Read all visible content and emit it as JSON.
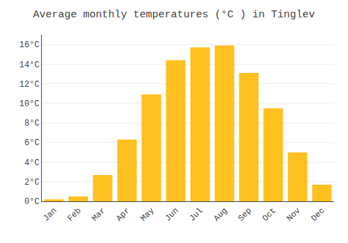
{
  "chart_data": {
    "type": "bar",
    "title": "Average monthly temperatures (°C ) in Tinglev",
    "categories": [
      "Jan",
      "Feb",
      "Mar",
      "Apr",
      "May",
      "Jun",
      "Jul",
      "Aug",
      "Sep",
      "Oct",
      "Nov",
      "Dec"
    ],
    "values": [
      0.2,
      0.5,
      2.7,
      6.3,
      10.9,
      14.4,
      15.7,
      15.9,
      13.1,
      9.5,
      5.0,
      1.7
    ],
    "color": "#FFC020",
    "ylim": [
      0,
      17.0
    ],
    "yticks": [
      {
        "value": 0,
        "label": "0°C"
      },
      {
        "value": 2,
        "label": "2°C"
      },
      {
        "value": 4,
        "label": "4°C"
      },
      {
        "value": 6,
        "label": "6°C"
      },
      {
        "value": 8,
        "label": "8°C"
      },
      {
        "value": 10,
        "label": "10°C"
      },
      {
        "value": 12,
        "label": "12°C"
      },
      {
        "value": 14,
        "label": "14°C"
      },
      {
        "value": 16,
        "label": "16°C"
      }
    ],
    "grid": true
  }
}
